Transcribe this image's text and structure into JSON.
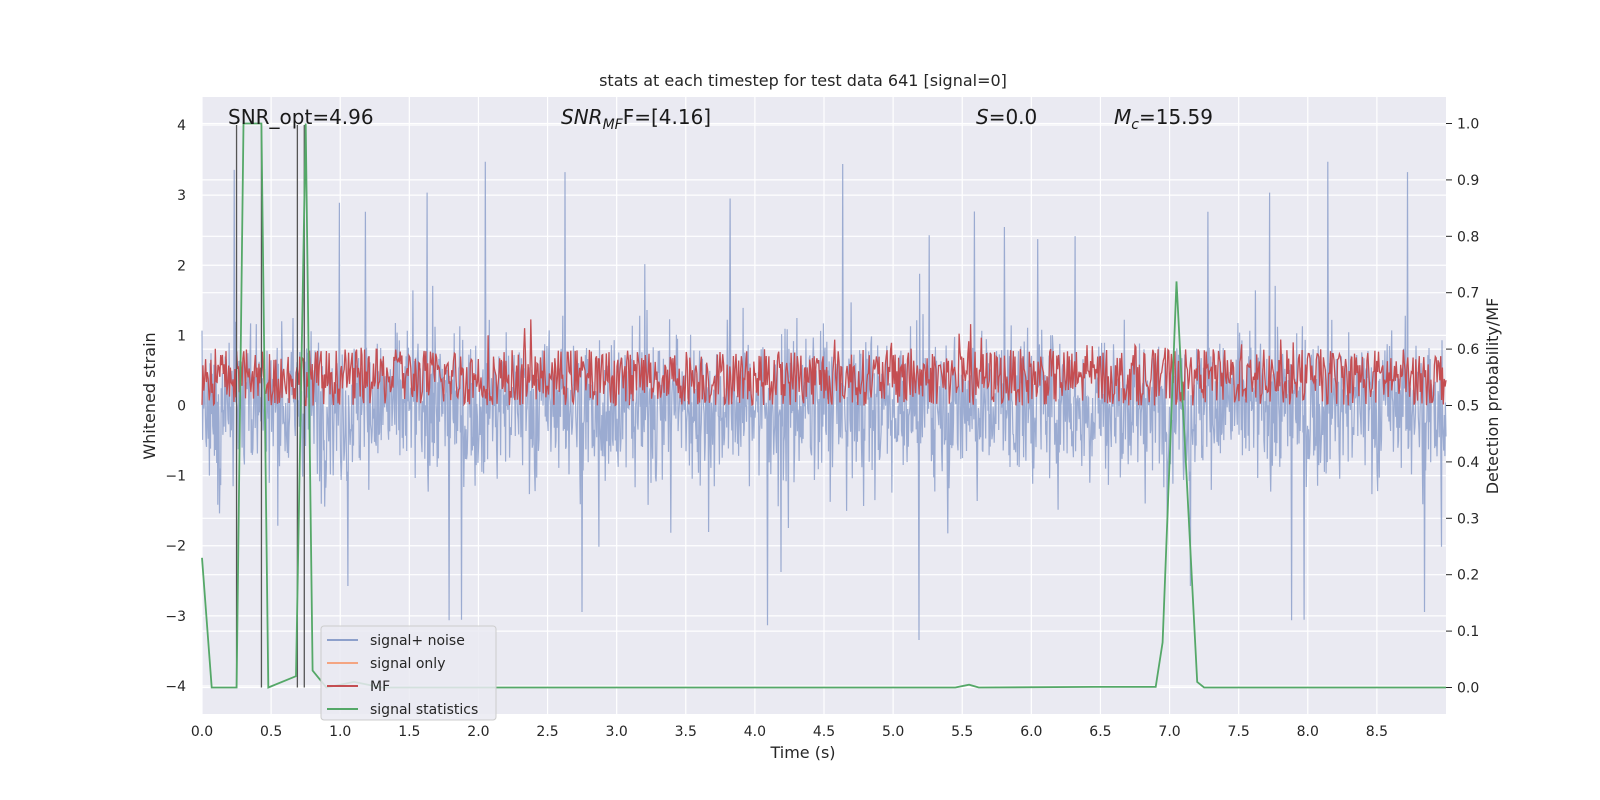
{
  "chart_data": {
    "type": "line",
    "title": "stats at each timestep for test data 641 [signal=0]",
    "xlabel": "Time (s)",
    "ylabel": "Whitened strain",
    "y2label": "Detection probability/MF",
    "xlim": [
      0.0,
      9.0
    ],
    "ylim": [
      -4.4,
      4.4
    ],
    "y2lim": [
      -0.047,
      1.047
    ],
    "xticks": [
      "0.0",
      "0.5",
      "1.0",
      "1.5",
      "2.0",
      "2.5",
      "3.0",
      "3.5",
      "4.0",
      "4.5",
      "5.0",
      "5.5",
      "6.0",
      "6.5",
      "7.0",
      "7.5",
      "8.0",
      "8.5"
    ],
    "yticks": [
      "4",
      "3",
      "2",
      "1",
      "0",
      "−1",
      "−2",
      "−3",
      "−4"
    ],
    "y2ticks": [
      "1.0",
      "0.9",
      "0.8",
      "0.7",
      "0.6",
      "0.5",
      "0.4",
      "0.3",
      "0.2",
      "0.1",
      "0.0"
    ],
    "grid": true,
    "legend_position": "lower-left",
    "annotations": {
      "snr_opt": "SNR_opt=4.96",
      "snr_mf_sym": "SNR",
      "snr_mf_sub": "MF",
      "snr_mf_val": "F=[4.16]",
      "s_sym": "S",
      "s_val": "=0.0",
      "mc_sym": "M",
      "mc_sub": "c",
      "mc_val": "=15.59"
    },
    "series": [
      {
        "name": "signal+ noise",
        "color": "#8da0cb",
        "description_values": "noise band roughly -1.5..1.5 with spikes to about +4 and -3.8",
        "upper_envelope_approx": 1.6,
        "lower_envelope_approx": -1.6
      },
      {
        "name": "signal only",
        "color": "#f4a582",
        "values": []
      },
      {
        "name": "MF",
        "color": "#c44e52",
        "axis": "right",
        "range_approx": [
          0.5,
          0.6
        ]
      },
      {
        "name": "signal statistics",
        "color": "#55a868",
        "axis": "right",
        "x": [
          0.0,
          0.07,
          0.25,
          0.3,
          0.43,
          0.48,
          0.68,
          0.75,
          0.8,
          0.9,
          1.1,
          1.3,
          1.5,
          3.8,
          5.45,
          5.55,
          5.62,
          6.45,
          6.9,
          6.95,
          7.05,
          7.2,
          7.25,
          9.0
        ],
        "y": [
          0.23,
          0.0,
          0.0,
          1.0,
          1.0,
          0.0,
          0.02,
          1.0,
          0.03,
          0.0,
          0.01,
          0.0,
          0.0,
          0.0,
          0.0,
          0.005,
          0.0,
          0.001,
          0.001,
          0.08,
          0.72,
          0.01,
          0.0,
          0.0
        ]
      }
    ],
    "vertical_markers_x": [
      0.25,
      0.43,
      0.69,
      0.74
    ]
  }
}
